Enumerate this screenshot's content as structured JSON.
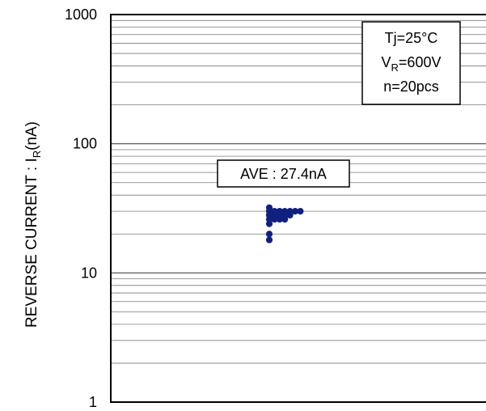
{
  "chart_data": {
    "type": "scatter",
    "yscale": "log",
    "ylim": [
      1,
      1000
    ],
    "y_ticks": [
      "1",
      "10",
      "100",
      "1000"
    ],
    "ylabel": {
      "main": "REVERSE CURRENT : I",
      "sub": "R",
      "suffix": "(nA)"
    },
    "xlabel": "",
    "grid": "horizontal minor log gridlines",
    "conditions": [
      {
        "main": "Tj=25°C",
        "sub": "",
        "suffix": ""
      },
      {
        "main": "V",
        "sub": "R",
        "suffix": "=600V"
      },
      {
        "main": "n=20pcs",
        "sub": "",
        "suffix": ""
      }
    ],
    "annotation": "AVE : 27.4nA",
    "marker_color": "#10207f",
    "points_ua": [
      {
        "rank": 0,
        "y": 18
      },
      {
        "rank": 0,
        "y": 20
      },
      {
        "rank": 0,
        "y": 24
      },
      {
        "rank": 0,
        "y": 26
      },
      {
        "rank": 0,
        "y": 28
      },
      {
        "rank": 0,
        "y": 30
      },
      {
        "rank": 0,
        "y": 32
      },
      {
        "rank": 1,
        "y": 26
      },
      {
        "rank": 1,
        "y": 28
      },
      {
        "rank": 1,
        "y": 30
      },
      {
        "rank": 2,
        "y": 26
      },
      {
        "rank": 2,
        "y": 28
      },
      {
        "rank": 2,
        "y": 30
      },
      {
        "rank": 3,
        "y": 26
      },
      {
        "rank": 3,
        "y": 28
      },
      {
        "rank": 3,
        "y": 30
      },
      {
        "rank": 4,
        "y": 28
      },
      {
        "rank": 4,
        "y": 30
      },
      {
        "rank": 5,
        "y": 30
      },
      {
        "rank": 6,
        "y": 30
      }
    ]
  }
}
